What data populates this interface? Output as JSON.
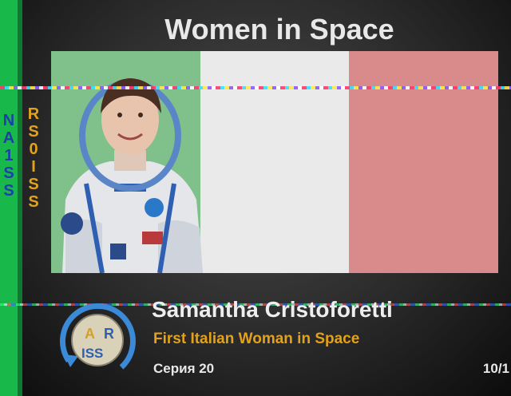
{
  "title": "Women in Space",
  "side_labels": {
    "left": [
      "N",
      "A",
      "1",
      "S",
      "S"
    ],
    "right": [
      "R",
      "S",
      "0",
      "I",
      "S",
      "S"
    ]
  },
  "person": {
    "name": "Samantha Cristoforetti",
    "subtitle": "First Italian Woman in Space"
  },
  "footer": {
    "series": "Серия 20",
    "counter": "10/1"
  },
  "logo": {
    "top": "A",
    "middle": "R",
    "bottom": "ISS"
  },
  "colors": {
    "flag_green": "#80c08a",
    "flag_white": "#eaeaea",
    "flag_red": "#d98a8a",
    "accent": "#e3a21a",
    "side_bar": "#19b84a"
  }
}
